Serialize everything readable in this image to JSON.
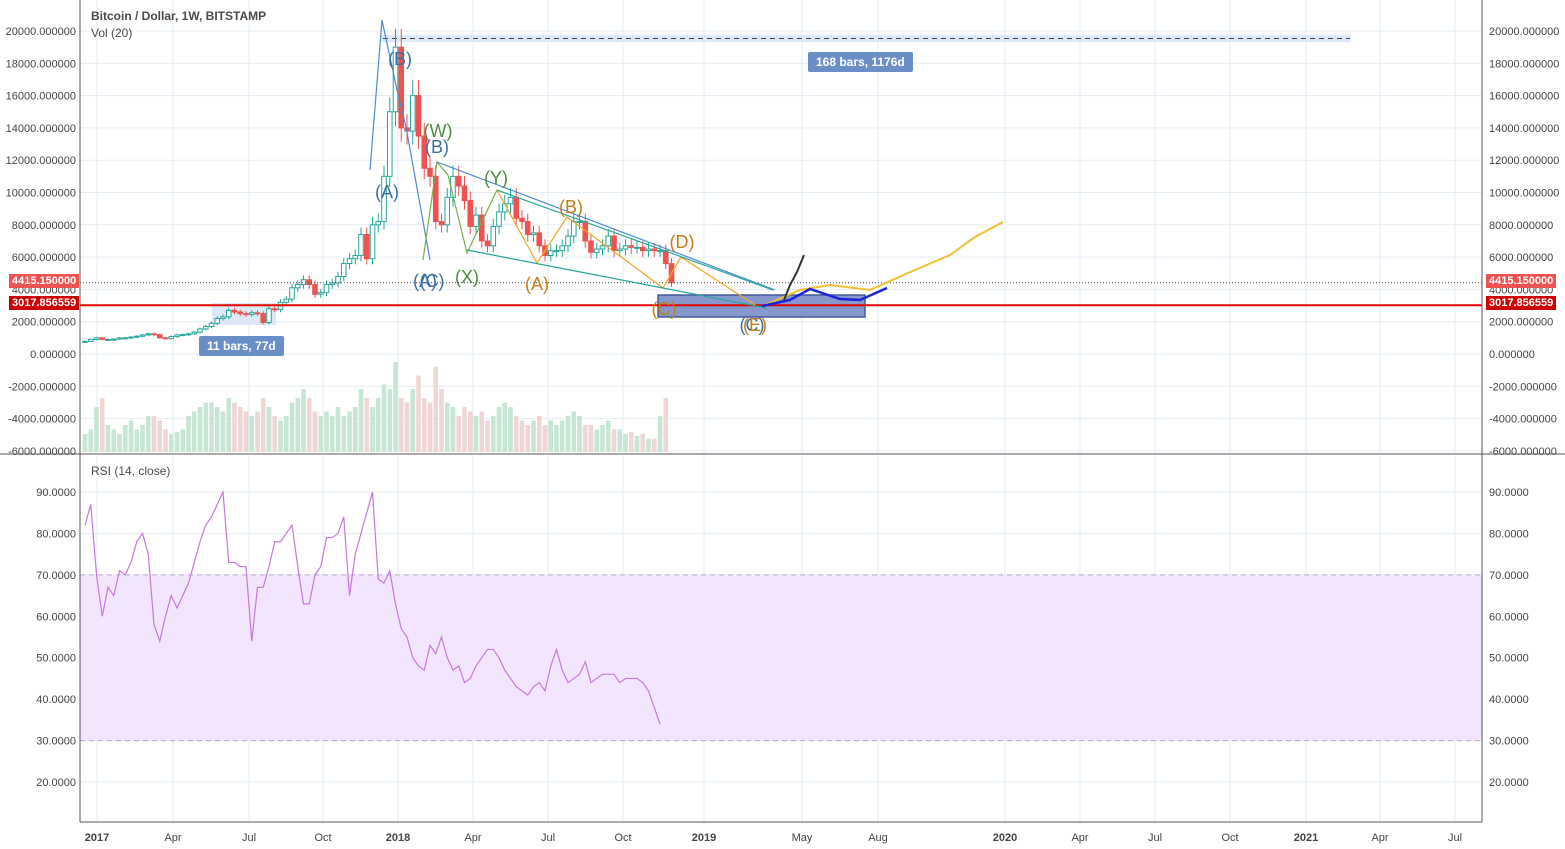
{
  "header": {
    "title": "Bitcoin / Dollar, 1W, BITSTAMP",
    "volume_label": "Vol (20)",
    "rsi_label": "RSI (14, close)"
  },
  "price_labels": {
    "last": "4415.150000",
    "line": "3017.856559",
    "last_color": "#ef5350",
    "line_color": "#cc0000"
  },
  "measures": {
    "top": "168 bars, 1176d",
    "bottom": "11 bars, 77d"
  },
  "colors": {
    "up": "#26a69a",
    "down": "#ef5350",
    "rsi": "#c678dd",
    "rsi_band": "#f3e5fd",
    "grid": "#e3edf6"
  },
  "chart_data": [
    {
      "type": "candlestick",
      "title": "Bitcoin / Dollar, 1W, BITSTAMP",
      "ylim": [
        -6000,
        21000
      ],
      "y_ticks": [
        "20000.000000",
        "18000.000000",
        "16000.000000",
        "14000.000000",
        "12000.000000",
        "10000.000000",
        "8000.000000",
        "6000.000000",
        "4000.000000",
        "2000.000000",
        "0.000000",
        "-2000.000000",
        "-4000.000000",
        "-6000.000000"
      ],
      "x_ticks": [
        "2017",
        "Apr",
        "Jul",
        "Oct",
        "2018",
        "Apr",
        "Jul",
        "Oct",
        "2019",
        "May",
        "Aug",
        "2020",
        "Apr",
        "Jul",
        "Oct",
        "2021",
        "Apr",
        "Jul"
      ],
      "grid": true,
      "closes": [
        780,
        900,
        1000,
        900,
        900,
        920,
        1000,
        1000,
        1050,
        1100,
        1180,
        1250,
        1200,
        1000,
        950,
        1080,
        1180,
        1200,
        1250,
        1350,
        1550,
        1700,
        1900,
        2200,
        2300,
        2700,
        2600,
        2500,
        2450,
        2550,
        2500,
        1950,
        2800,
        2750,
        3200,
        3400,
        4100,
        4300,
        4600,
        4300,
        3700,
        3800,
        4300,
        4400,
        4800,
        5600,
        5900,
        6100,
        7400,
        5900,
        8000,
        8200,
        11000,
        15000,
        19000,
        14000,
        13800,
        16000,
        13500,
        11500,
        11000,
        8200,
        8000,
        9700,
        11000,
        10400,
        9500,
        7900,
        8600,
        7000,
        6700,
        7900,
        8800,
        9300,
        9700,
        8400,
        8200,
        7400,
        7500,
        6700,
        6100,
        6400,
        6400,
        6700,
        7300,
        8200,
        8200,
        7000,
        6300,
        6500,
        6700,
        7300,
        6400,
        6500,
        6700,
        6600,
        6600,
        6400,
        6500,
        6400,
        6400,
        5600,
        4415
      ],
      "volume_relative": [
        20,
        25,
        50,
        60,
        30,
        25,
        20,
        30,
        35,
        25,
        30,
        40,
        40,
        35,
        25,
        20,
        22,
        25,
        40,
        45,
        50,
        55,
        55,
        50,
        45,
        60,
        55,
        50,
        45,
        40,
        45,
        60,
        50,
        40,
        35,
        40,
        55,
        60,
        70,
        60,
        45,
        40,
        45,
        40,
        50,
        40,
        45,
        50,
        70,
        60,
        50,
        60,
        75,
        70,
        100,
        60,
        55,
        70,
        85,
        60,
        55,
        95,
        70,
        55,
        50,
        40,
        50,
        45,
        40,
        45,
        35,
        40,
        50,
        55,
        50,
        40,
        35,
        30,
        35,
        40,
        30,
        35,
        30,
        35,
        40,
        45,
        40,
        30,
        30,
        25,
        30,
        35,
        25,
        25,
        20,
        22,
        18,
        20,
        15,
        15,
        40,
        60
      ]
    },
    {
      "type": "line",
      "title": "RSI (14, close)",
      "ylim": [
        10,
        95
      ],
      "y_ticks": [
        "90.0000",
        "80.0000",
        "70.0000",
        "60.0000",
        "50.0000",
        "40.0000",
        "30.0000",
        "20.0000"
      ],
      "band": [
        30,
        70
      ],
      "values": [
        82,
        87,
        70,
        60,
        67,
        65,
        71,
        70,
        73,
        78,
        80,
        75,
        58,
        54,
        60,
        65,
        62,
        65,
        68,
        73,
        78,
        82,
        84,
        87,
        90,
        73,
        73,
        72,
        72,
        54,
        67,
        67,
        72,
        78,
        78,
        80,
        82,
        72,
        63,
        63,
        70,
        72,
        79,
        79,
        80,
        84,
        65,
        75,
        80,
        85,
        90,
        69,
        68,
        71,
        63,
        57,
        55,
        50,
        48,
        47,
        53,
        51,
        55,
        50,
        47,
        48,
        44,
        45,
        48,
        50,
        52,
        52,
        50,
        47,
        45,
        43,
        42,
        41,
        43,
        44,
        42,
        48,
        52,
        47,
        44,
        45,
        46,
        49,
        44,
        45,
        46,
        46,
        46,
        44,
        45,
        45,
        45,
        44,
        42,
        38,
        34
      ]
    }
  ],
  "annotations": [
    {
      "text": "(B)",
      "color": "#3b6fa3"
    },
    {
      "text": "(A)",
      "color": "#3b6fa3"
    },
    {
      "text": "(W)",
      "color": "#4e8a3d"
    },
    {
      "text": "(B)",
      "color": "#3b6fa3"
    },
    {
      "text": "(A)",
      "color": "#3b6fa3"
    },
    {
      "text": "(C)",
      "color": "#3b6fa3"
    },
    {
      "text": "(X)",
      "color": "#4e8a3d"
    },
    {
      "text": "(Y)",
      "color": "#4e8a3d"
    },
    {
      "text": "(A)",
      "color": "#c77d17"
    },
    {
      "text": "(B)",
      "color": "#c77d17"
    },
    {
      "text": "(C)",
      "color": "#c77d17"
    },
    {
      "text": "(D)",
      "color": "#c77d17"
    },
    {
      "text": "(C)",
      "color": "#3b6fa3"
    },
    {
      "text": "(E)",
      "color": "#c77d17"
    }
  ]
}
